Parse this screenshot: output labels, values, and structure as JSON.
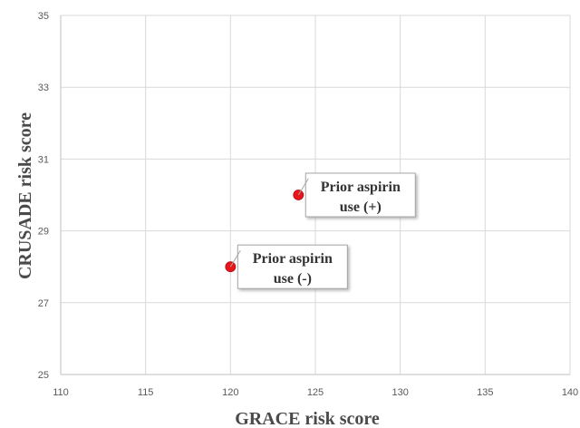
{
  "chart_data": {
    "type": "scatter",
    "title": "",
    "xlabel": "GRACE risk score",
    "ylabel": "CRUSADE risk score",
    "xlim": [
      110,
      140
    ],
    "ylim": [
      25,
      35
    ],
    "xticks": [
      "110",
      "115",
      "120",
      "125",
      "130",
      "135",
      "140"
    ],
    "yticks": [
      "25",
      "27",
      "29",
      "31",
      "33",
      "35"
    ],
    "grid": true,
    "legend": "none",
    "series": [
      {
        "color": "#e8151b",
        "points": [
          {
            "x": 124,
            "y": 30,
            "label_lines": [
              "Prior aspirin",
              "use (+)"
            ]
          },
          {
            "x": 120,
            "y": 28,
            "label_lines": [
              "Prior aspirin",
              "use (-)"
            ]
          }
        ]
      }
    ]
  }
}
